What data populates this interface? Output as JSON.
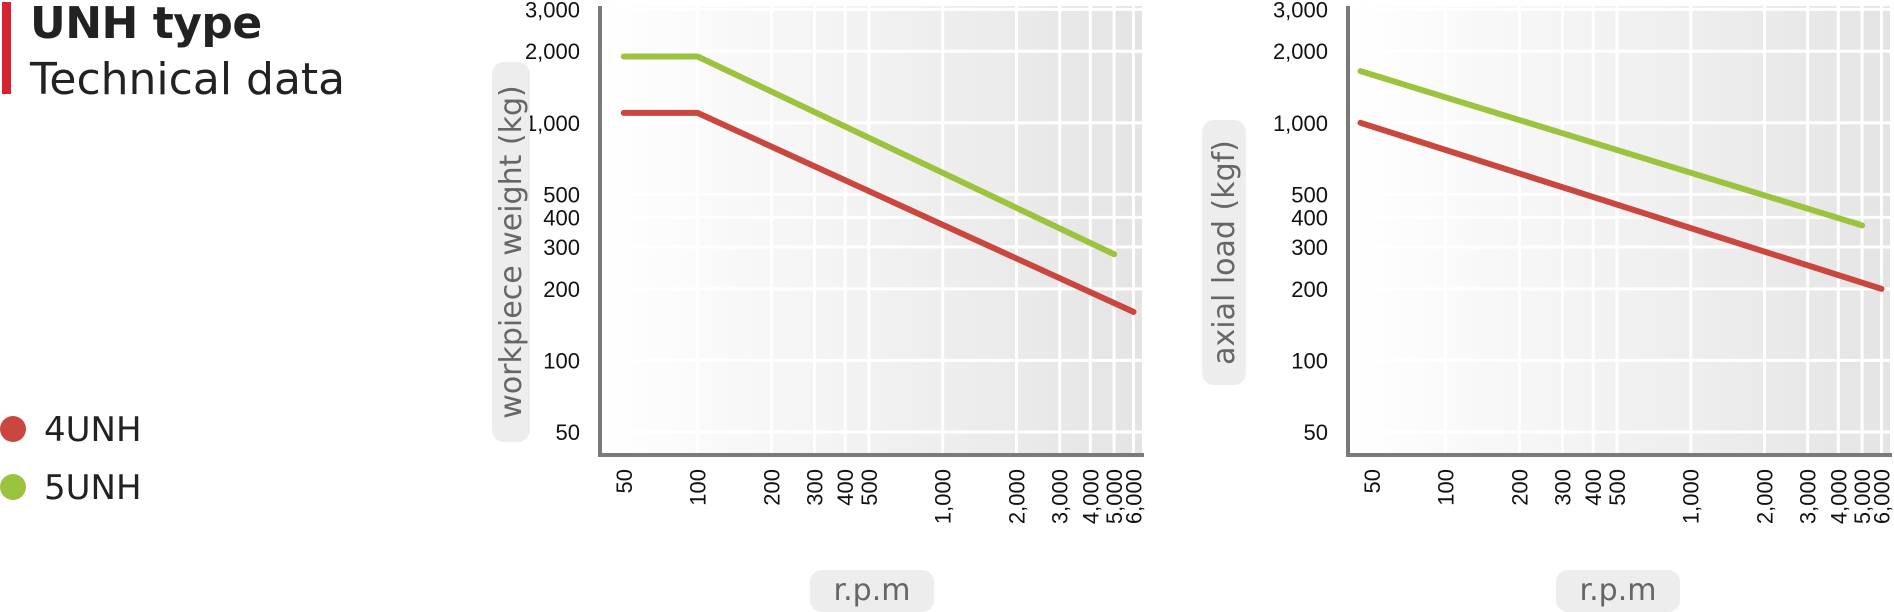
{
  "header": {
    "title": "UNH type",
    "subtitle": "Technical data",
    "accent": "#d5232f"
  },
  "legend": [
    {
      "label": "4UNH",
      "color": "#c9473e"
    },
    {
      "label": "5UNH",
      "color": "#9cc33e"
    }
  ],
  "chart_data": [
    {
      "type": "line",
      "x_scale": "log",
      "y_scale": "log",
      "xlabel": "r.p.m",
      "ylabel": "workpiece weight (kg)",
      "x_ticks": [
        50,
        100,
        200,
        300,
        400,
        500,
        1000,
        2000,
        3000,
        4000,
        5000,
        6000
      ],
      "x_tick_labels": [
        "50",
        "100",
        "200",
        "300",
        "400",
        "500",
        "1,000",
        "2,000",
        "3,000",
        "4,000",
        "5,000",
        "6,000"
      ],
      "y_ticks": [
        50,
        100,
        200,
        300,
        400,
        500,
        1000,
        2000,
        3000
      ],
      "y_tick_labels": [
        "50",
        "100",
        "200",
        "300",
        "400",
        "500",
        "1,000",
        "2,000",
        "3,000"
      ],
      "xlim": [
        40,
        6500
      ],
      "ylim": [
        40,
        3100
      ],
      "grid": true,
      "series": [
        {
          "name": "4UNH",
          "color": "#c9473e",
          "x": [
            50,
            100,
            6000
          ],
          "y": [
            1100,
            1100,
            160
          ]
        },
        {
          "name": "5UNH",
          "color": "#9cc33e",
          "x": [
            50,
            100,
            5000
          ],
          "y": [
            1900,
            1900,
            280
          ]
        }
      ]
    },
    {
      "type": "line",
      "x_scale": "log",
      "y_scale": "log",
      "xlabel": "r.p.m",
      "ylabel": "axial load  (kgf)",
      "x_ticks": [
        50,
        100,
        200,
        300,
        400,
        500,
        1000,
        2000,
        3000,
        4000,
        5000,
        6000
      ],
      "x_tick_labels": [
        "50",
        "100",
        "200",
        "300",
        "400",
        "500",
        "1,000",
        "2,000",
        "3,000",
        "4,000",
        "5,000",
        "6,000"
      ],
      "y_ticks": [
        50,
        100,
        200,
        300,
        400,
        500,
        1000,
        2000,
        3000
      ],
      "y_tick_labels": [
        "50",
        "100",
        "200",
        "300",
        "400",
        "500",
        "1,000",
        "2,000",
        "3,000"
      ],
      "xlim": [
        40,
        6500
      ],
      "ylim": [
        40,
        3100
      ],
      "grid": true,
      "series": [
        {
          "name": "4UNH",
          "color": "#c9473e",
          "x": [
            45,
            6000
          ],
          "y": [
            1000,
            200
          ]
        },
        {
          "name": "5UNH",
          "color": "#9cc33e",
          "x": [
            45,
            5000
          ],
          "y": [
            1650,
            370
          ]
        }
      ]
    }
  ]
}
